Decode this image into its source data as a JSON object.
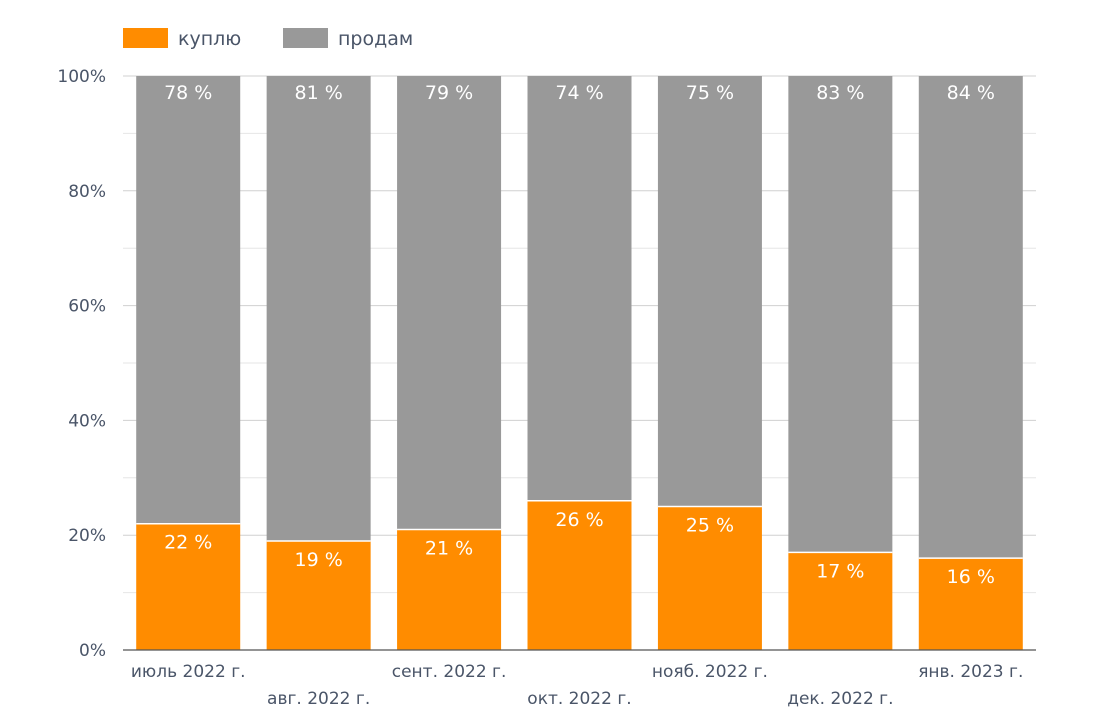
{
  "chart_data": {
    "type": "bar",
    "stacked": true,
    "categories": [
      "июль 2022 г.",
      "авг. 2022 г.",
      "сент. 2022 г.",
      "окт. 2022 г.",
      "нояб. 2022 г.",
      "дек. 2022 г.",
      "янв. 2023 г."
    ],
    "series": [
      {
        "name": "куплю",
        "color": "#FF8C00",
        "values": [
          22,
          19,
          21,
          26,
          25,
          17,
          16
        ],
        "labels": [
          "22 %",
          "19 %",
          "21 %",
          "26 %",
          "25 %",
          "17 %",
          "16 %"
        ]
      },
      {
        "name": "продам",
        "color": "#999999",
        "values": [
          78,
          81,
          79,
          74,
          75,
          83,
          84
        ],
        "labels": [
          "78 %",
          "81 %",
          "79 %",
          "74 %",
          "75 %",
          "83 %",
          "84 %"
        ]
      }
    ],
    "y_ticks": [
      "0%",
      "20%",
      "40%",
      "60%",
      "80%",
      "100%"
    ],
    "ylim": [
      0,
      100
    ],
    "grid": true,
    "legend": "top-left",
    "title": "",
    "xlabel": "",
    "ylabel": ""
  }
}
